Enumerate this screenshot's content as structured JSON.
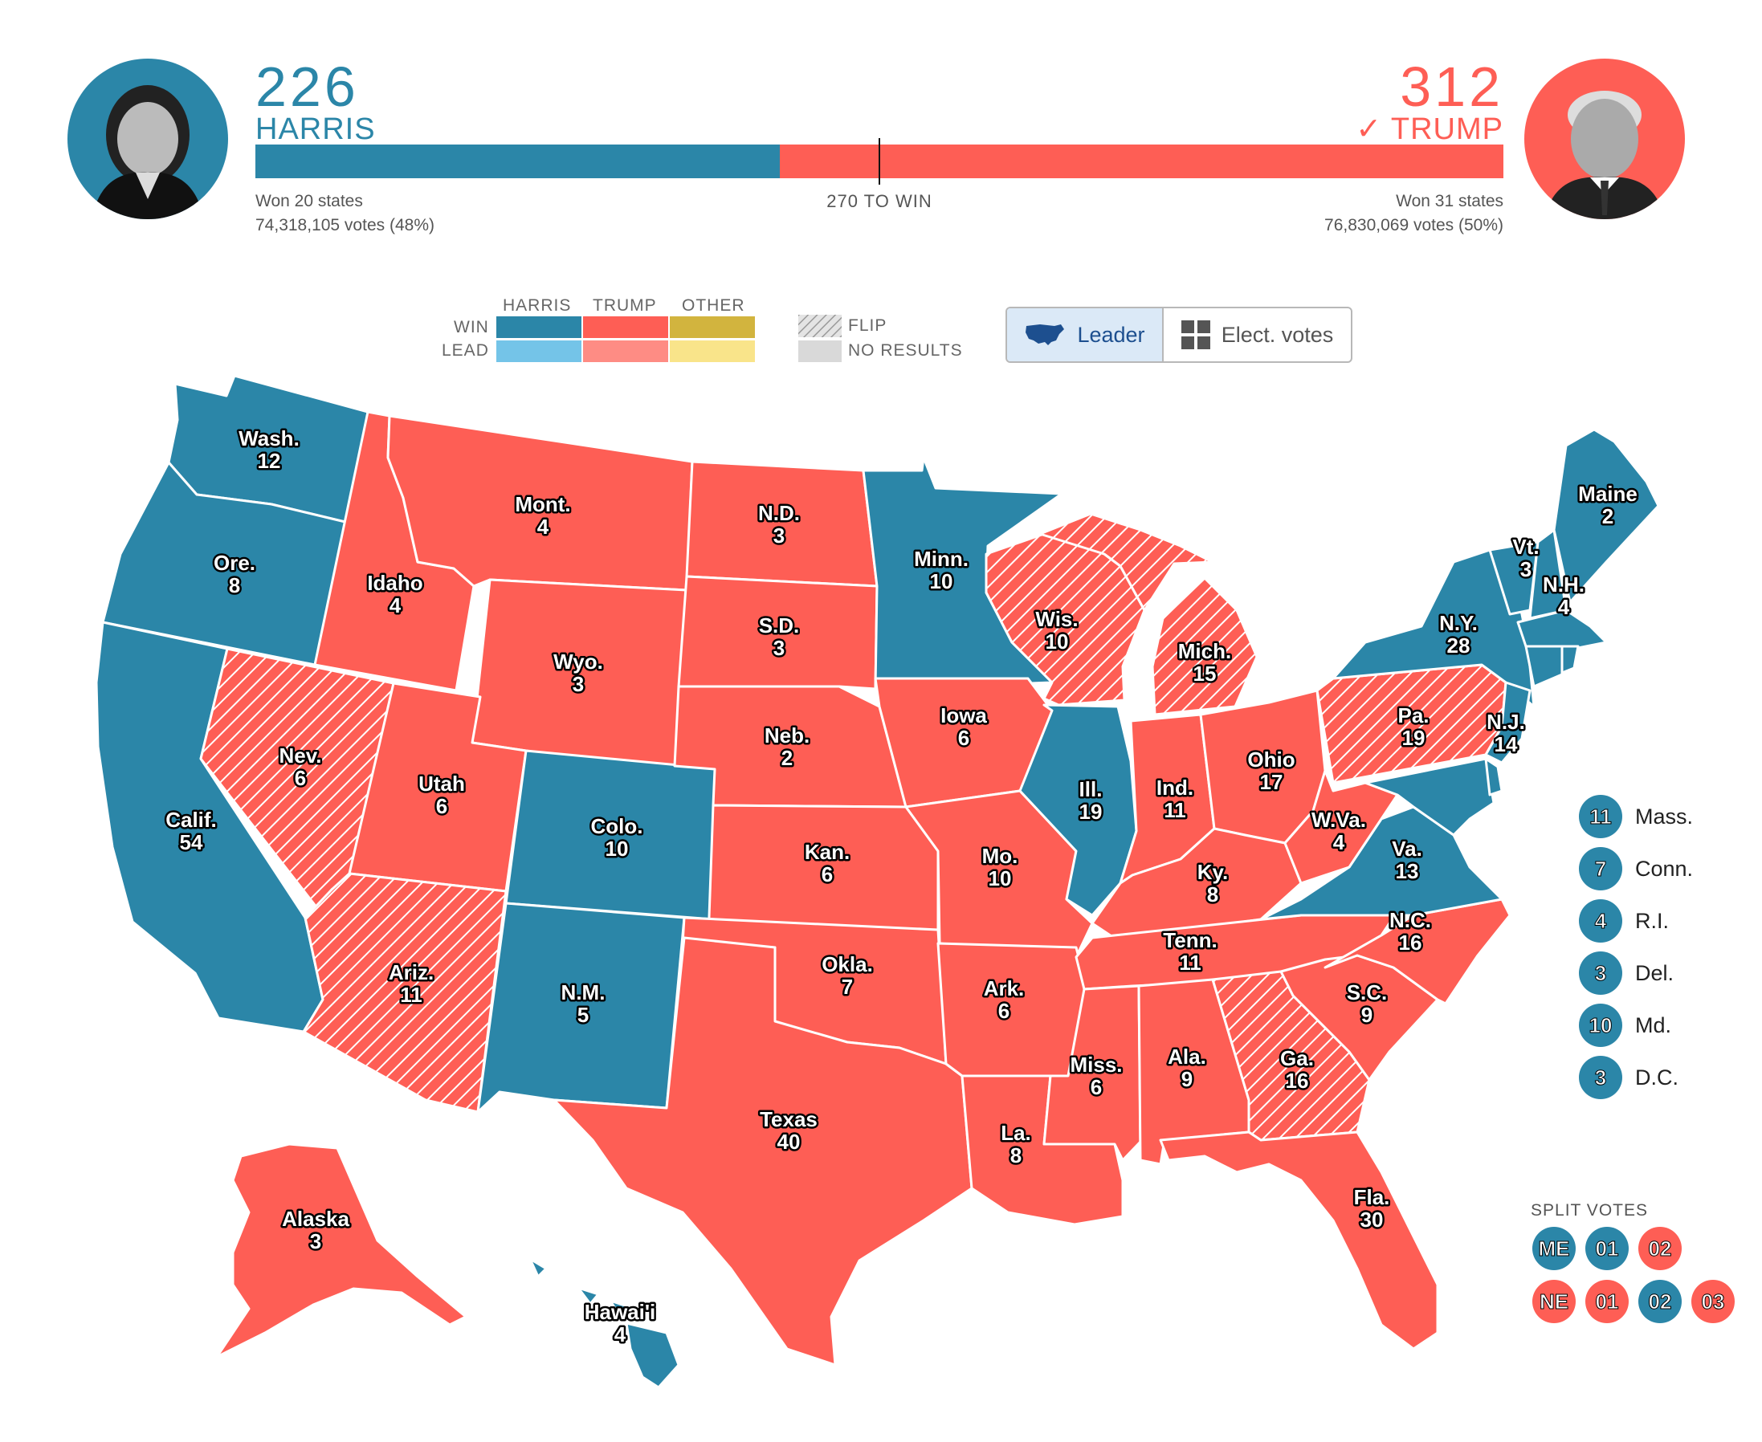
{
  "colors": {
    "harris_win": "#2b86a8",
    "harris_lead": "#74c4e8",
    "trump_win": "#fe5e55",
    "trump_lead": "#fe8c84",
    "other_win": "#d2b43e",
    "other_lead": "#f9e48a",
    "no_results": "#d9d9d9"
  },
  "harris": {
    "score": "226",
    "name": "HARRIS",
    "states_won": "Won 20 states",
    "votes": "74,318,105 votes (48%)",
    "electoral_votes": 226
  },
  "trump": {
    "score": "312",
    "name": "✓ TRUMP",
    "states_won": "Won 31 states",
    "votes": "76,830,069 votes (50%)",
    "electoral_votes": 312
  },
  "threshold_label": "270 TO WIN",
  "legend": {
    "col_harris": "HARRIS",
    "col_trump": "TRUMP",
    "col_other": "OTHER",
    "row_win": "WIN",
    "row_lead": "LEAD",
    "flip": "FLIP",
    "no_results": "NO RESULTS"
  },
  "toggle": {
    "leader": "Leader",
    "elect_votes": "Elect. votes"
  },
  "states": [
    {
      "name": "Wash.",
      "ev": "12"
    },
    {
      "name": "Ore.",
      "ev": "8"
    },
    {
      "name": "Calif.",
      "ev": "54"
    },
    {
      "name": "Nev.",
      "ev": "6"
    },
    {
      "name": "Idaho",
      "ev": "4"
    },
    {
      "name": "Mont.",
      "ev": "4"
    },
    {
      "name": "Wyo.",
      "ev": "3"
    },
    {
      "name": "Utah",
      "ev": "6"
    },
    {
      "name": "Ariz.",
      "ev": "11"
    },
    {
      "name": "Colo.",
      "ev": "10"
    },
    {
      "name": "N.M.",
      "ev": "5"
    },
    {
      "name": "N.D.",
      "ev": "3"
    },
    {
      "name": "S.D.",
      "ev": "3"
    },
    {
      "name": "Neb.",
      "ev": "2"
    },
    {
      "name": "Kan.",
      "ev": "6"
    },
    {
      "name": "Okla.",
      "ev": "7"
    },
    {
      "name": "Texas",
      "ev": "40"
    },
    {
      "name": "Minn.",
      "ev": "10"
    },
    {
      "name": "Iowa",
      "ev": "6"
    },
    {
      "name": "Mo.",
      "ev": "10"
    },
    {
      "name": "Ark.",
      "ev": "6"
    },
    {
      "name": "La.",
      "ev": "8"
    },
    {
      "name": "Wis.",
      "ev": "10"
    },
    {
      "name": "Ill.",
      "ev": "19"
    },
    {
      "name": "Mich.",
      "ev": "15"
    },
    {
      "name": "Ind.",
      "ev": "11"
    },
    {
      "name": "Ohio",
      "ev": "17"
    },
    {
      "name": "Ky.",
      "ev": "8"
    },
    {
      "name": "Tenn.",
      "ev": "11"
    },
    {
      "name": "Miss.",
      "ev": "6"
    },
    {
      "name": "Ala.",
      "ev": "9"
    },
    {
      "name": "Ga.",
      "ev": "16"
    },
    {
      "name": "Fla.",
      "ev": "30"
    },
    {
      "name": "S.C.",
      "ev": "9"
    },
    {
      "name": "N.C.",
      "ev": "16"
    },
    {
      "name": "Va.",
      "ev": "13"
    },
    {
      "name": "W.Va.",
      "ev": "4"
    },
    {
      "name": "Pa.",
      "ev": "19"
    },
    {
      "name": "N.Y.",
      "ev": "28"
    },
    {
      "name": "N.J.",
      "ev": "14"
    },
    {
      "name": "Vt.",
      "ev": "3"
    },
    {
      "name": "N.H.",
      "ev": "4"
    },
    {
      "name": "Maine",
      "ev": "2"
    },
    {
      "name": "Alaska",
      "ev": "3"
    },
    {
      "name": "Hawai'i",
      "ev": "4"
    }
  ],
  "small_states": [
    {
      "ev": "11",
      "name": "Mass."
    },
    {
      "ev": "7",
      "name": "Conn."
    },
    {
      "ev": "4",
      "name": "R.I."
    },
    {
      "ev": "3",
      "name": "Del."
    },
    {
      "ev": "10",
      "name": "Md."
    },
    {
      "ev": "3",
      "name": "D.C."
    }
  ],
  "split_votes": {
    "title": "SPLIT VOTES",
    "maine": [
      {
        "label": "ME",
        "winner": "harris"
      },
      {
        "label": "01",
        "winner": "harris"
      },
      {
        "label": "02",
        "winner": "trump"
      }
    ],
    "nebraska": [
      {
        "label": "NE",
        "winner": "trump"
      },
      {
        "label": "01",
        "winner": "trump"
      },
      {
        "label": "02",
        "winner": "harris"
      },
      {
        "label": "03",
        "winner": "trump"
      }
    ]
  }
}
